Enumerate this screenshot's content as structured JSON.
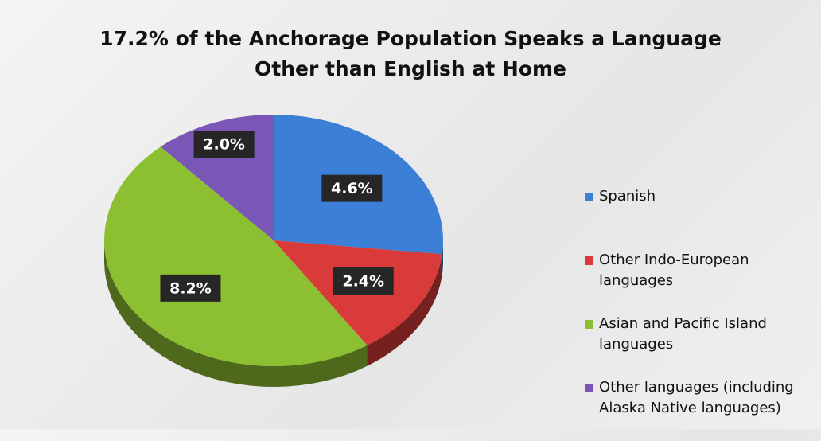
{
  "chart_data": {
    "type": "pie",
    "title": "17.2% of the Anchorage Population Speaks a Language Other than English at Home",
    "categories": [
      "Spanish",
      "Other Indo-European languages",
      "Asian and Pacific Island languages",
      "Other languages (including Alaska Native languages)"
    ],
    "values": [
      4.6,
      2.4,
      8.2,
      2.0
    ],
    "value_labels": [
      "4.6%",
      "2.4%",
      "8.2%",
      "2.0%"
    ],
    "colors": [
      "#3b7fd6",
      "#d93a3a",
      "#8dbf32",
      "#7a56b6"
    ],
    "legend": "right"
  }
}
